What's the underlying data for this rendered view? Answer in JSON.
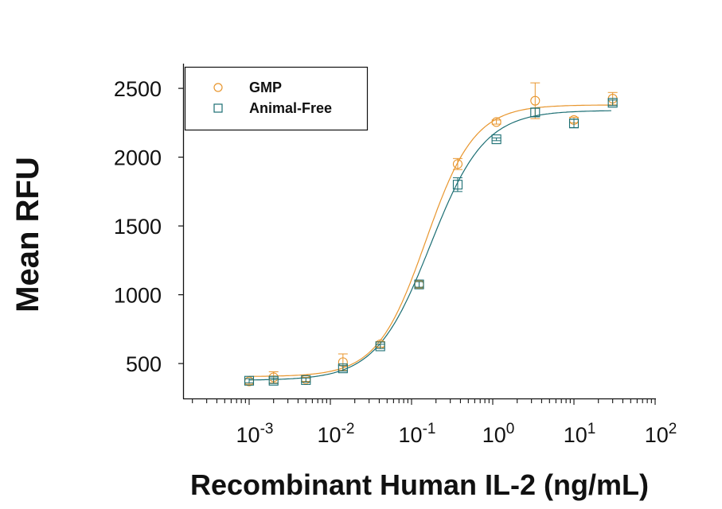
{
  "chart_data": {
    "type": "scatter",
    "title": "",
    "xlabel": "Recombinant Human IL-2 (ng/mL)",
    "ylabel": "Mean RFU",
    "xscale": "log",
    "xlim": [
      0.00015,
      100
    ],
    "ylim": [
      245,
      2650
    ],
    "x_ticks": [
      {
        "value": 0.001,
        "base": "10",
        "exp": "-3"
      },
      {
        "value": 0.01,
        "base": "10",
        "exp": "-2"
      },
      {
        "value": 0.1,
        "base": "10",
        "exp": "-1"
      },
      {
        "value": 1,
        "base": "10",
        "exp": "0"
      },
      {
        "value": 10,
        "base": "10",
        "exp": "1"
      },
      {
        "value": 100,
        "base": "10",
        "exp": "2"
      }
    ],
    "y_ticks": [
      500,
      1000,
      1500,
      2000,
      2500
    ],
    "grid": false,
    "legend_position": "top-left",
    "x": [
      0.001,
      0.002,
      0.005,
      0.0143,
      0.0412,
      0.124,
      0.37,
      1.11,
      3.33,
      10,
      30
    ],
    "series": [
      {
        "name": "GMP",
        "marker": "circle",
        "color": "#E8962E",
        "values": [
          370,
          400,
          385,
          510,
          640,
          1075,
          1950,
          2255,
          2410,
          2270,
          2425
        ],
        "errors": [
          20,
          40,
          15,
          60,
          20,
          25,
          40,
          15,
          130,
          20,
          45
        ],
        "fit": {
          "bottom": 405,
          "top": 2380,
          "ec50": 0.15,
          "hill": 1.45
        }
      },
      {
        "name": "Animal-Free",
        "marker": "square",
        "color": "#1B6E73",
        "values": [
          375,
          375,
          380,
          465,
          625,
          1075,
          1800,
          2130,
          2325,
          2245,
          2395
        ],
        "errors": [
          15,
          20,
          15,
          20,
          15,
          20,
          50,
          10,
          30,
          30,
          20
        ],
        "fit": {
          "bottom": 378,
          "top": 2340,
          "ec50": 0.17,
          "hill": 1.3
        }
      }
    ]
  }
}
